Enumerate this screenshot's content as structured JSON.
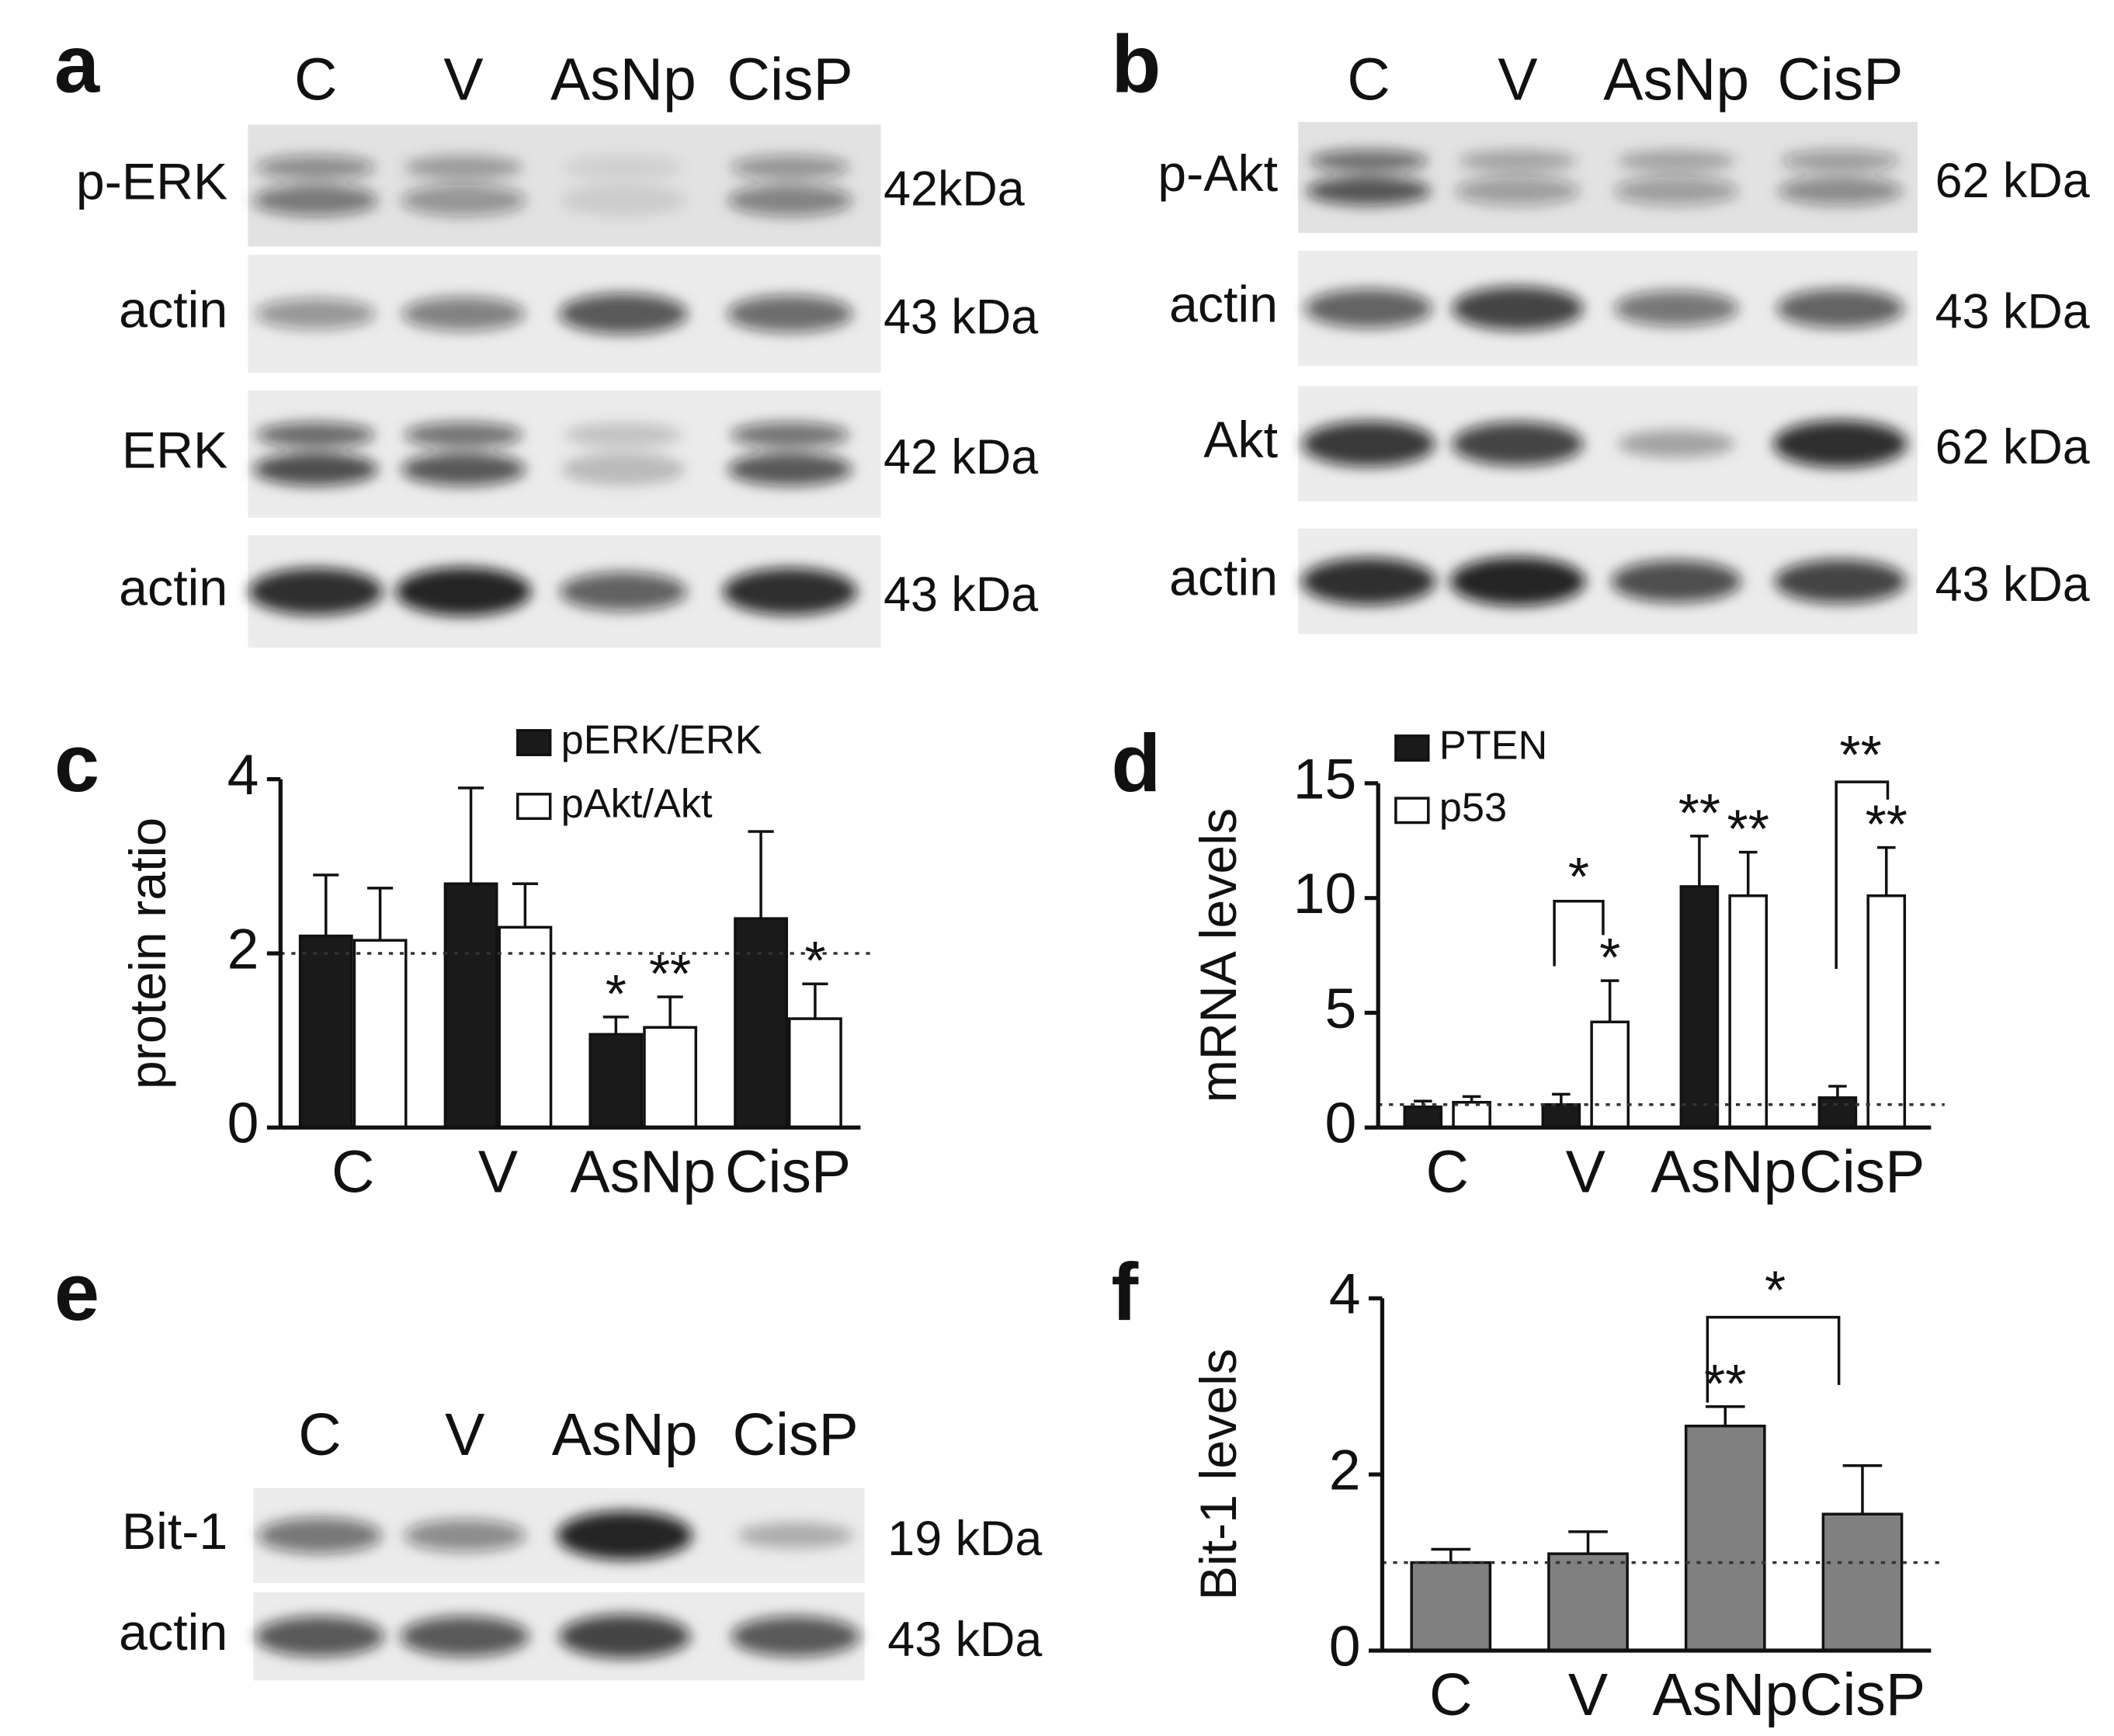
{
  "blots": [
    {
      "panel": "a",
      "lanes": [
        "C",
        "V",
        "AsNp",
        "CisP"
      ],
      "rows": [
        {
          "label": "p-ERK",
          "kda": "42kDa"
        },
        {
          "label": "actin",
          "kda": "43 kDa"
        },
        {
          "label": "ERK",
          "kda": "42 kDa"
        },
        {
          "label": "actin",
          "kda": "43 kDa"
        }
      ]
    },
    {
      "panel": "b",
      "lanes": [
        "C",
        "V",
        "AsNp",
        "CisP"
      ],
      "rows": [
        {
          "label": "p-Akt",
          "kda": "62 kDa"
        },
        {
          "label": "actin",
          "kda": "43 kDa"
        },
        {
          "label": "Akt",
          "kda": "62 kDa"
        },
        {
          "label": "actin",
          "kda": "43 kDa"
        }
      ]
    },
    {
      "panel": "e",
      "lanes": [
        "C",
        "V",
        "AsNp",
        "CisP"
      ],
      "rows": [
        {
          "label": "Bit-1",
          "kda": "19 kDa"
        },
        {
          "label": "actin",
          "kda": "43 kDa"
        }
      ]
    }
  ],
  "chart_data": [
    {
      "type": "bar",
      "panel": "c",
      "y_label": "protein ratio",
      "categories": [
        "C",
        "V",
        "AsNp",
        "CisP"
      ],
      "series": [
        {
          "name": "pERK/ERK",
          "color": "#1a1a1a",
          "values": [
            2.2,
            2.8,
            1.07,
            2.4
          ],
          "errors": [
            0.7,
            1.1,
            0.2,
            1.0
          ],
          "significance": [
            null,
            null,
            "*",
            null
          ]
        },
        {
          "name": "pAkt/Akt",
          "color": "#ffffff",
          "values": [
            2.15,
            2.3,
            1.15,
            1.25
          ],
          "errors": [
            0.6,
            0.5,
            0.35,
            0.4
          ],
          "significance": [
            null,
            null,
            "**",
            "*"
          ]
        }
      ],
      "ylim": [
        0,
        4
      ],
      "yticks": [
        0,
        2,
        4
      ],
      "reference_line": 2,
      "legend": "top"
    },
    {
      "type": "bar",
      "panel": "d",
      "y_label": "mRNA levels",
      "categories": [
        "C",
        "V",
        "AsNp",
        "CisP"
      ],
      "series": [
        {
          "name": "PTEN",
          "color": "#1a1a1a",
          "values": [
            0.9,
            1.0,
            10.5,
            1.3
          ],
          "errors": [
            0.25,
            0.45,
            2.2,
            0.5
          ],
          "significance": [
            null,
            null,
            "**",
            null
          ]
        },
        {
          "name": "p53",
          "color": "#ffffff",
          "values": [
            1.1,
            4.6,
            10.1,
            10.1
          ],
          "errors": [
            0.25,
            1.8,
            1.9,
            2.1
          ],
          "significance": [
            null,
            "*",
            "**",
            "**"
          ]
        }
      ],
      "brackets": [
        "*",
        "**"
      ],
      "ylim": [
        0,
        15
      ],
      "yticks": [
        0,
        5,
        10,
        15
      ],
      "reference_line": 1,
      "legend": "top-left"
    },
    {
      "type": "bar",
      "panel": "f",
      "y_label": "Bit-1 levels",
      "categories": [
        "C",
        "V",
        "AsNp",
        "CisP"
      ],
      "series": [
        {
          "color": "#808080",
          "values": [
            1.0,
            1.1,
            2.55,
            1.55
          ],
          "errors": [
            0.15,
            0.25,
            0.22,
            0.55
          ],
          "significance": [
            null,
            null,
            "**",
            null
          ]
        }
      ],
      "brackets": [
        "*"
      ],
      "ylim": [
        0,
        4
      ],
      "yticks": [
        0,
        2,
        4
      ],
      "reference_line": 1
    }
  ]
}
